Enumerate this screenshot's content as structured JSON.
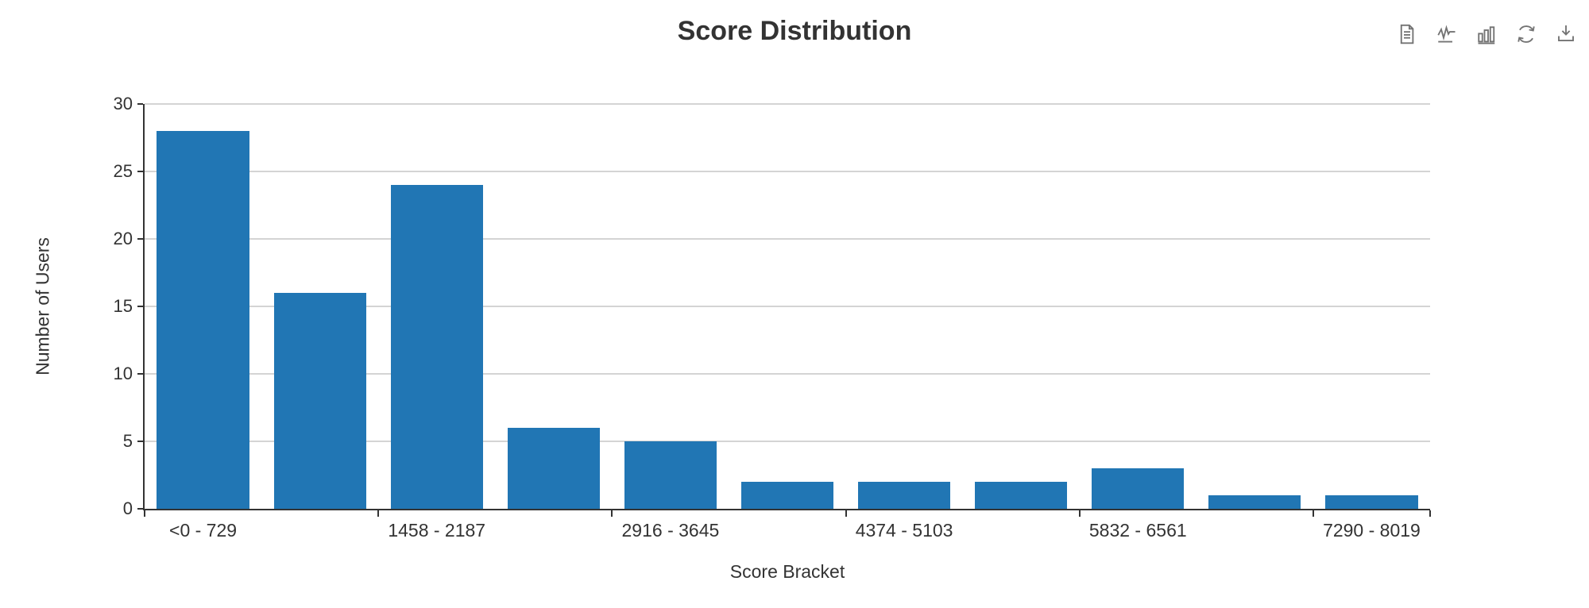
{
  "chart_data": {
    "type": "bar",
    "title": "Score Distribution",
    "xlabel": "Score Bracket",
    "ylabel": "Number of Users",
    "categories": [
      "<0 - 729",
      "",
      "1458 - 2187",
      "",
      "2916 - 3645",
      "",
      "4374 - 5103",
      "",
      "5832 - 6561",
      "",
      "7290 - 8019"
    ],
    "values": [
      28,
      16,
      24,
      6,
      5,
      2,
      2,
      2,
      3,
      1,
      1
    ],
    "ylim": [
      0,
      30
    ],
    "yticks": [
      0,
      5,
      10,
      15,
      20,
      25,
      30
    ],
    "x_tick_boundaries": [
      0,
      2,
      4,
      6,
      8,
      10,
      11
    ],
    "grid": true,
    "legend_position": "none",
    "bar_color": "#2176b4"
  },
  "toolbox": {
    "icons": [
      "data-view-icon",
      "line-chart-icon",
      "bar-chart-icon",
      "restore-icon",
      "download-icon"
    ]
  },
  "colors": {
    "bar": "#2176b4",
    "grid_line": "#d4d4d4",
    "axis_line": "#333333",
    "text": "#333333",
    "icon": "#737373",
    "background": "#ffffff"
  }
}
